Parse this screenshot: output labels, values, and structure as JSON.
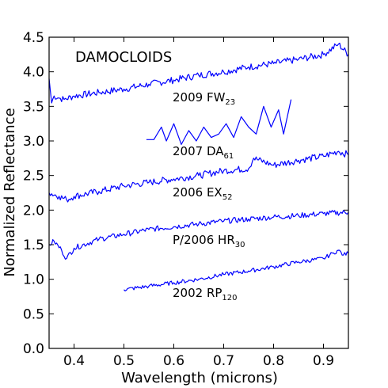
{
  "chart_data": {
    "type": "line",
    "title": "DAMOCLOIDS",
    "xlabel": "Wavelength (microns)",
    "ylabel": "Normalized Reflectance",
    "xlim": [
      0.35,
      0.95
    ],
    "ylim": [
      0.0,
      4.5
    ],
    "xticks": [
      "0.4",
      "0.5",
      "0.6",
      "0.7",
      "0.8",
      "0.9"
    ],
    "yticks": [
      "0.0",
      "0.5",
      "1.0",
      "1.5",
      "2.0",
      "2.5",
      "3.0",
      "3.5",
      "4.0",
      "4.5"
    ],
    "line_color": "#0000ff",
    "grid": false,
    "series": [
      {
        "name": "2009 FW",
        "name_sub": "23",
        "x": [
          0.35,
          0.355,
          0.36,
          0.37,
          0.38,
          0.4,
          0.45,
          0.5,
          0.55,
          0.6,
          0.65,
          0.7,
          0.75,
          0.8,
          0.85,
          0.9,
          0.93,
          0.95
        ],
        "y": [
          3.9,
          3.55,
          3.65,
          3.62,
          3.6,
          3.65,
          3.7,
          3.75,
          3.82,
          3.88,
          3.95,
          4.0,
          4.07,
          4.12,
          4.18,
          4.25,
          4.4,
          4.25
        ]
      },
      {
        "name": "2007 DA",
        "name_sub": "61",
        "x": [
          0.545,
          0.56,
          0.575,
          0.585,
          0.6,
          0.615,
          0.63,
          0.645,
          0.66,
          0.675,
          0.69,
          0.705,
          0.72,
          0.735,
          0.75,
          0.765,
          0.78,
          0.795,
          0.81,
          0.82,
          0.835
        ],
        "y": [
          3.02,
          3.02,
          3.2,
          3.0,
          3.25,
          2.95,
          3.15,
          3.0,
          3.2,
          3.05,
          3.1,
          3.25,
          3.05,
          3.35,
          3.2,
          3.1,
          3.5,
          3.2,
          3.45,
          3.1,
          3.6
        ]
      },
      {
        "name": "2006 EX",
        "name_sub": "52",
        "x": [
          0.35,
          0.37,
          0.385,
          0.4,
          0.45,
          0.5,
          0.55,
          0.6,
          0.65,
          0.7,
          0.75,
          0.76,
          0.8,
          0.85,
          0.9,
          0.93,
          0.95
        ],
        "y": [
          2.25,
          2.2,
          2.15,
          2.2,
          2.27,
          2.35,
          2.4,
          2.45,
          2.5,
          2.57,
          2.6,
          2.75,
          2.65,
          2.72,
          2.78,
          2.85,
          2.8
        ]
      },
      {
        "name": "P/2006 HR",
        "name_sub": "30",
        "x": [
          0.35,
          0.36,
          0.375,
          0.385,
          0.4,
          0.45,
          0.5,
          0.55,
          0.6,
          0.65,
          0.7,
          0.75,
          0.8,
          0.85,
          0.9,
          0.95
        ],
        "y": [
          1.5,
          1.55,
          1.42,
          1.3,
          1.45,
          1.58,
          1.65,
          1.72,
          1.76,
          1.8,
          1.84,
          1.87,
          1.9,
          1.92,
          1.95,
          1.97
        ]
      },
      {
        "name": "2002 RP",
        "name_sub": "120",
        "x": [
          0.5,
          0.55,
          0.6,
          0.65,
          0.7,
          0.75,
          0.8,
          0.85,
          0.9,
          0.92,
          0.93,
          0.94,
          0.95
        ],
        "y": [
          0.85,
          0.9,
          0.95,
          1.0,
          1.07,
          1.12,
          1.18,
          1.25,
          1.3,
          1.38,
          1.42,
          1.35,
          1.38
        ]
      }
    ]
  }
}
